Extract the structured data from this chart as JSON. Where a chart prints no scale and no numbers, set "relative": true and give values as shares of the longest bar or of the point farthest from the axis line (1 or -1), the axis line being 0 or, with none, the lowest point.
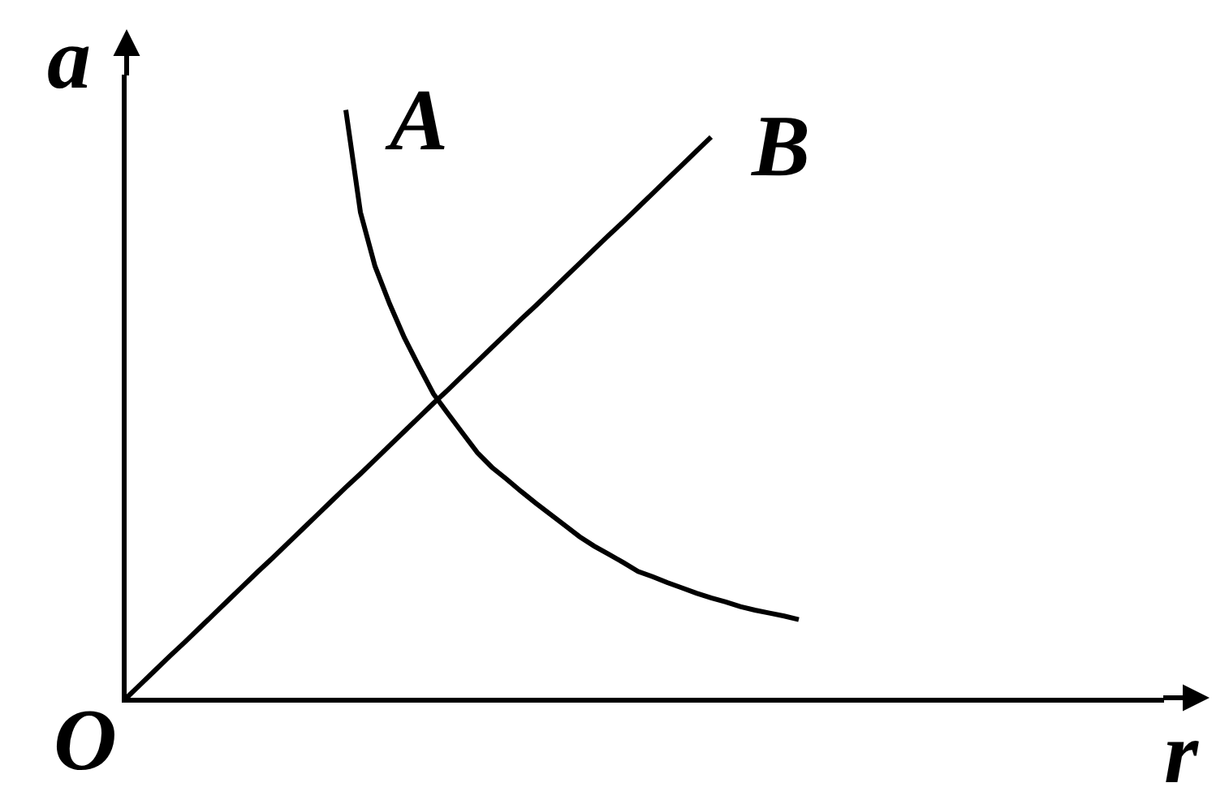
{
  "chart_data": {
    "type": "line",
    "relative": true,
    "xlabel": "r",
    "ylabel": "a",
    "annotations": [
      "O"
    ],
    "categories": [
      null,
      null,
      null,
      null,
      null,
      null,
      null,
      null,
      null,
      null,
      null,
      null,
      null,
      null,
      null,
      null,
      null,
      null,
      null,
      null,
      null,
      null,
      null,
      null,
      null,
      null,
      null,
      null,
      null,
      null,
      null,
      null,
      null,
      null,
      null,
      null,
      null,
      null,
      null,
      null,
      null,
      null,
      null,
      null,
      null,
      null,
      null,
      null,
      null,
      null,
      null,
      null,
      null,
      null,
      null,
      null,
      null,
      null,
      null,
      null,
      null,
      null,
      null,
      null,
      null,
      null,
      null,
      null,
      null,
      null,
      null,
      null
    ],
    "series": [
      {
        "name": "A",
        "color": "#000000",
        "values": [
          null,
          null,
          null,
          null,
          null,
          null,
          null,
          null,
          null,
          null,
          null,
          null,
          null,
          null,
          null,
          1.0,
          0.826,
          0.734,
          0.67,
          0.613,
          0.564,
          0.517,
          0.483,
          0.45,
          0.417,
          0.392,
          0.372,
          0.351,
          0.331,
          0.312,
          0.293,
          0.274,
          0.258,
          0.244,
          0.23,
          0.215,
          0.206,
          0.196,
          0.187,
          0.178,
          0.17,
          0.163,
          0.155,
          0.149,
          0.144,
          0.139,
          0.133,
          null,
          null,
          null,
          null,
          null,
          null,
          null,
          null,
          null,
          null,
          null,
          null,
          null,
          null,
          null,
          null,
          null,
          null,
          null,
          null,
          null,
          null,
          null,
          null,
          null
        ]
      },
      {
        "name": "B",
        "color": "#000000",
        "values": [
          0,
          0.024,
          0.048,
          0.072,
          0.095,
          0.119,
          0.143,
          0.167,
          0.191,
          0.215,
          0.238,
          0.262,
          0.286,
          0.31,
          0.334,
          0.358,
          0.381,
          0.405,
          0.429,
          0.453,
          0.477,
          0.501,
          0.524,
          0.548,
          0.572,
          0.596,
          0.62,
          0.644,
          0.667,
          0.691,
          0.715,
          0.739,
          0.763,
          0.787,
          0.81,
          0.834,
          0.858,
          0.882,
          0.906,
          0.93,
          0.954,
          null,
          null,
          null,
          null,
          null,
          null,
          null,
          null,
          null,
          null,
          null,
          null,
          null,
          null,
          null,
          null,
          null,
          null,
          null,
          null,
          null,
          null,
          null,
          null,
          null,
          null,
          null,
          null,
          null,
          null,
          null
        ]
      }
    ]
  }
}
